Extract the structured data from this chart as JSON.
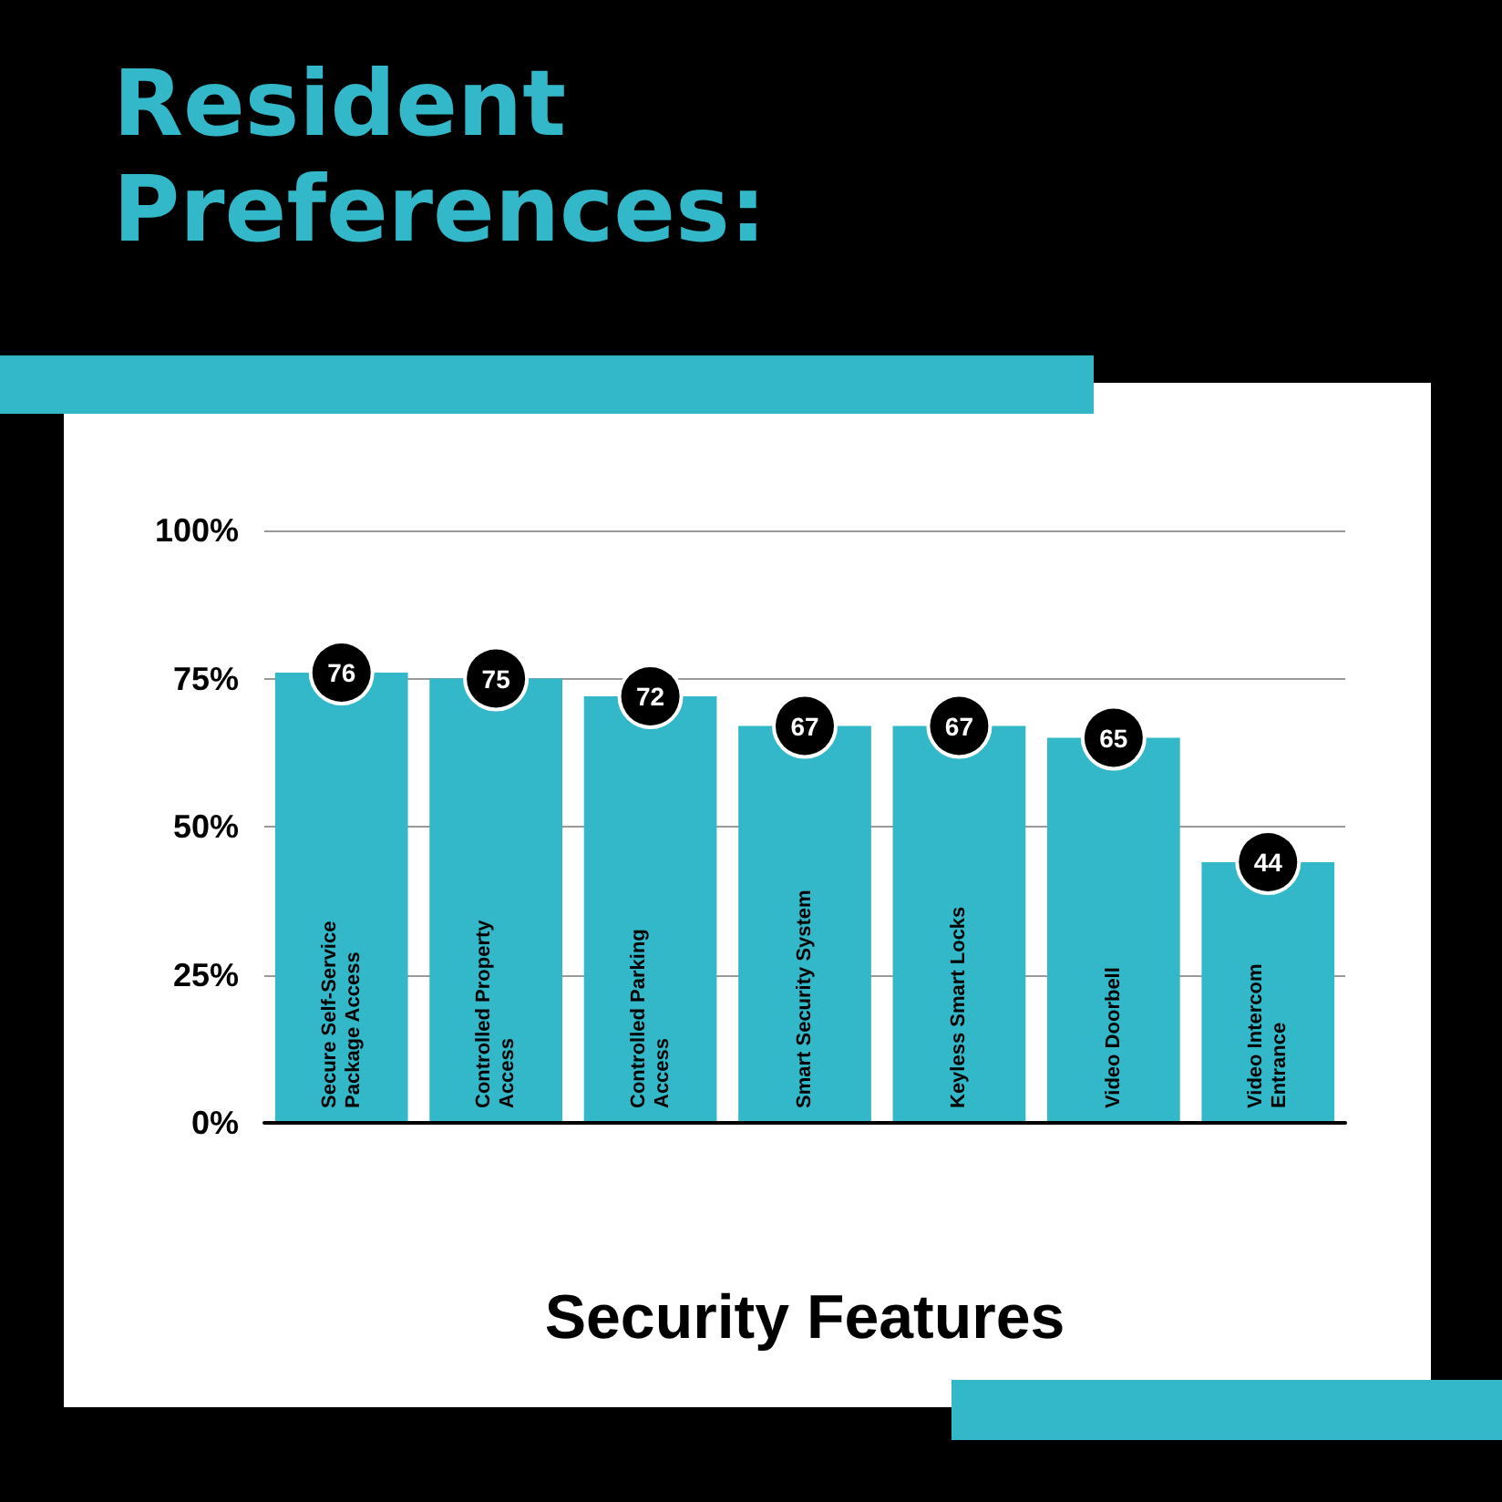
{
  "chart_data": {
    "type": "bar",
    "title": "Resident Preferences:",
    "xlabel": "Security Features",
    "categories": [
      "Secure Self-Service Package Access",
      "Controlled Property Access",
      "Controlled Parking Access",
      "Smart Security System",
      "Keyless Smart Locks",
      "Video Doorbell",
      "Video Intercom Entrance"
    ],
    "values": [
      76,
      75,
      72,
      67,
      67,
      65,
      44
    ],
    "color": "#33b8c9",
    "ylim": [
      0,
      100
    ],
    "yticks": [
      {
        "value": 0,
        "label": "0%"
      },
      {
        "value": 25,
        "label": "25%"
      },
      {
        "value": 50,
        "label": "50%"
      },
      {
        "value": 75,
        "label": "75%"
      },
      {
        "value": 100,
        "label": "100%"
      }
    ],
    "grid": "y",
    "data_labels": true
  }
}
